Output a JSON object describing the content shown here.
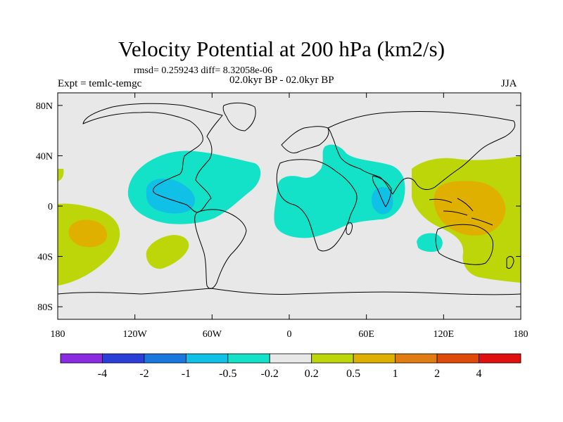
{
  "title": "Velocity Potential at 200 hPa (km2/s)",
  "stats": "rmsd= 0.259243 diff= 8.32058e-06",
  "period": "02.0kyr BP - 02.0kyr BP",
  "experiment": "Expt = temlc-temgc",
  "season": "JJA",
  "map": {
    "lon_ticks": [
      {
        "value": -180,
        "label": "180"
      },
      {
        "value": -120,
        "label": "120W"
      },
      {
        "value": -60,
        "label": "60W"
      },
      {
        "value": 0,
        "label": "0"
      },
      {
        "value": 60,
        "label": "60E"
      },
      {
        "value": 120,
        "label": "120E"
      },
      {
        "value": 180,
        "label": "180"
      }
    ],
    "lat_ticks": [
      {
        "value": 80,
        "label": "80N"
      },
      {
        "value": 40,
        "label": "40N"
      },
      {
        "value": 0,
        "label": "0"
      },
      {
        "value": -40,
        "label": "40S"
      },
      {
        "value": -80,
        "label": "80S"
      }
    ]
  },
  "colorbar": {
    "colors": [
      "#8a2be2",
      "#2a3fd8",
      "#1878de",
      "#10c0e6",
      "#14e2c8",
      "#e8e8e8",
      "#bcd60a",
      "#e0b000",
      "#e07c10",
      "#e04a08",
      "#e01010"
    ],
    "labels": [
      "-4",
      "-2",
      "-1",
      "-0.5",
      "-0.2",
      "0.2",
      "0.5",
      "1",
      "2",
      "4"
    ]
  },
  "colors": {
    "ocean_background": "#e8e8e8",
    "neg_weak": "#14e2c8",
    "neg_mid": "#10c0e6",
    "pos_weak": "#bcd60a",
    "pos_mid": "#e0b000"
  }
}
